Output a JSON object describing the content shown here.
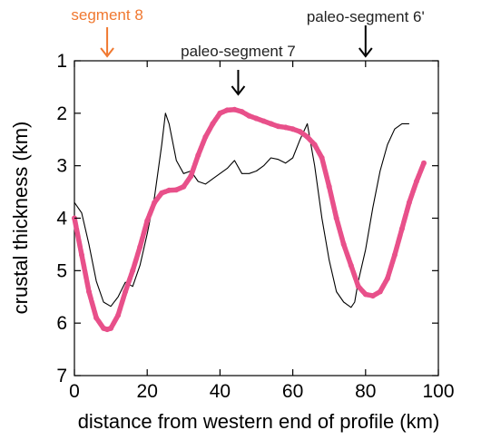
{
  "chart_data": {
    "type": "line",
    "title": "",
    "xlabel": "distance from western end of profile (km)",
    "ylabel": "crustal thickness (km)",
    "xlim": [
      0,
      100
    ],
    "ylim": [
      1,
      7
    ],
    "y_inverted": true,
    "x_ticks": [
      0,
      20,
      40,
      60,
      80,
      100
    ],
    "y_ticks": [
      1,
      2,
      3,
      4,
      5,
      6,
      7
    ],
    "grid": false,
    "legend": "none",
    "series": [
      {
        "style": "thin black line",
        "color": "#000000",
        "x": [
          0,
          2,
          4,
          6,
          8,
          10,
          12,
          14,
          16,
          18,
          20,
          22,
          24,
          25,
          26,
          28,
          30,
          32,
          34,
          36,
          38,
          40,
          42,
          44,
          46,
          48,
          50,
          52,
          54,
          56,
          58,
          60,
          62,
          64,
          66,
          68,
          70,
          72,
          74,
          76,
          77,
          78,
          80,
          82,
          84,
          86,
          88,
          90,
          92
        ],
        "y": [
          3.7,
          3.9,
          4.5,
          5.2,
          5.6,
          5.68,
          5.5,
          5.22,
          5.3,
          4.9,
          4.3,
          3.6,
          2.6,
          2.0,
          2.2,
          2.9,
          3.15,
          3.1,
          3.3,
          3.35,
          3.25,
          3.15,
          3.05,
          2.9,
          3.15,
          3.15,
          3.1,
          3.0,
          2.85,
          2.88,
          2.95,
          2.85,
          2.5,
          2.2,
          3.0,
          4.0,
          4.8,
          5.4,
          5.6,
          5.7,
          5.6,
          5.2,
          4.6,
          3.8,
          3.1,
          2.6,
          2.3,
          2.2,
          2.2
        ]
      },
      {
        "style": "thick pink dotted line",
        "color": "#e8508a",
        "x": [
          0,
          2,
          4,
          6,
          8,
          9,
          10,
          12,
          14,
          16,
          18,
          20,
          22,
          24,
          26,
          28,
          30,
          32,
          34,
          36,
          38,
          40,
          42,
          44,
          46,
          48,
          50,
          52,
          54,
          56,
          58,
          60,
          62,
          64,
          66,
          68,
          70,
          72,
          74,
          76,
          78,
          80,
          82,
          84,
          86,
          88,
          90,
          92,
          94,
          96
        ],
        "y": [
          4.0,
          4.7,
          5.4,
          5.9,
          6.1,
          6.12,
          6.1,
          5.85,
          5.4,
          5.0,
          4.55,
          4.05,
          3.7,
          3.52,
          3.47,
          3.46,
          3.4,
          3.2,
          2.8,
          2.45,
          2.2,
          2.0,
          1.94,
          1.93,
          1.97,
          2.05,
          2.1,
          2.15,
          2.2,
          2.25,
          2.27,
          2.3,
          2.35,
          2.45,
          2.6,
          2.85,
          3.4,
          4.0,
          4.5,
          4.9,
          5.3,
          5.45,
          5.48,
          5.4,
          5.15,
          4.7,
          4.2,
          3.7,
          3.3,
          2.95
        ]
      }
    ],
    "annotations": [
      {
        "text": "segment 8",
        "x": 9,
        "color": "#f07830",
        "arrow_color": "#f07830"
      },
      {
        "text": "paleo-segment 7",
        "x": 45,
        "color": "#222222",
        "arrow_color": "#000000"
      },
      {
        "text": "paleo-segment 6'",
        "x": 80,
        "color": "#222222",
        "arrow_color": "#000000"
      }
    ]
  }
}
